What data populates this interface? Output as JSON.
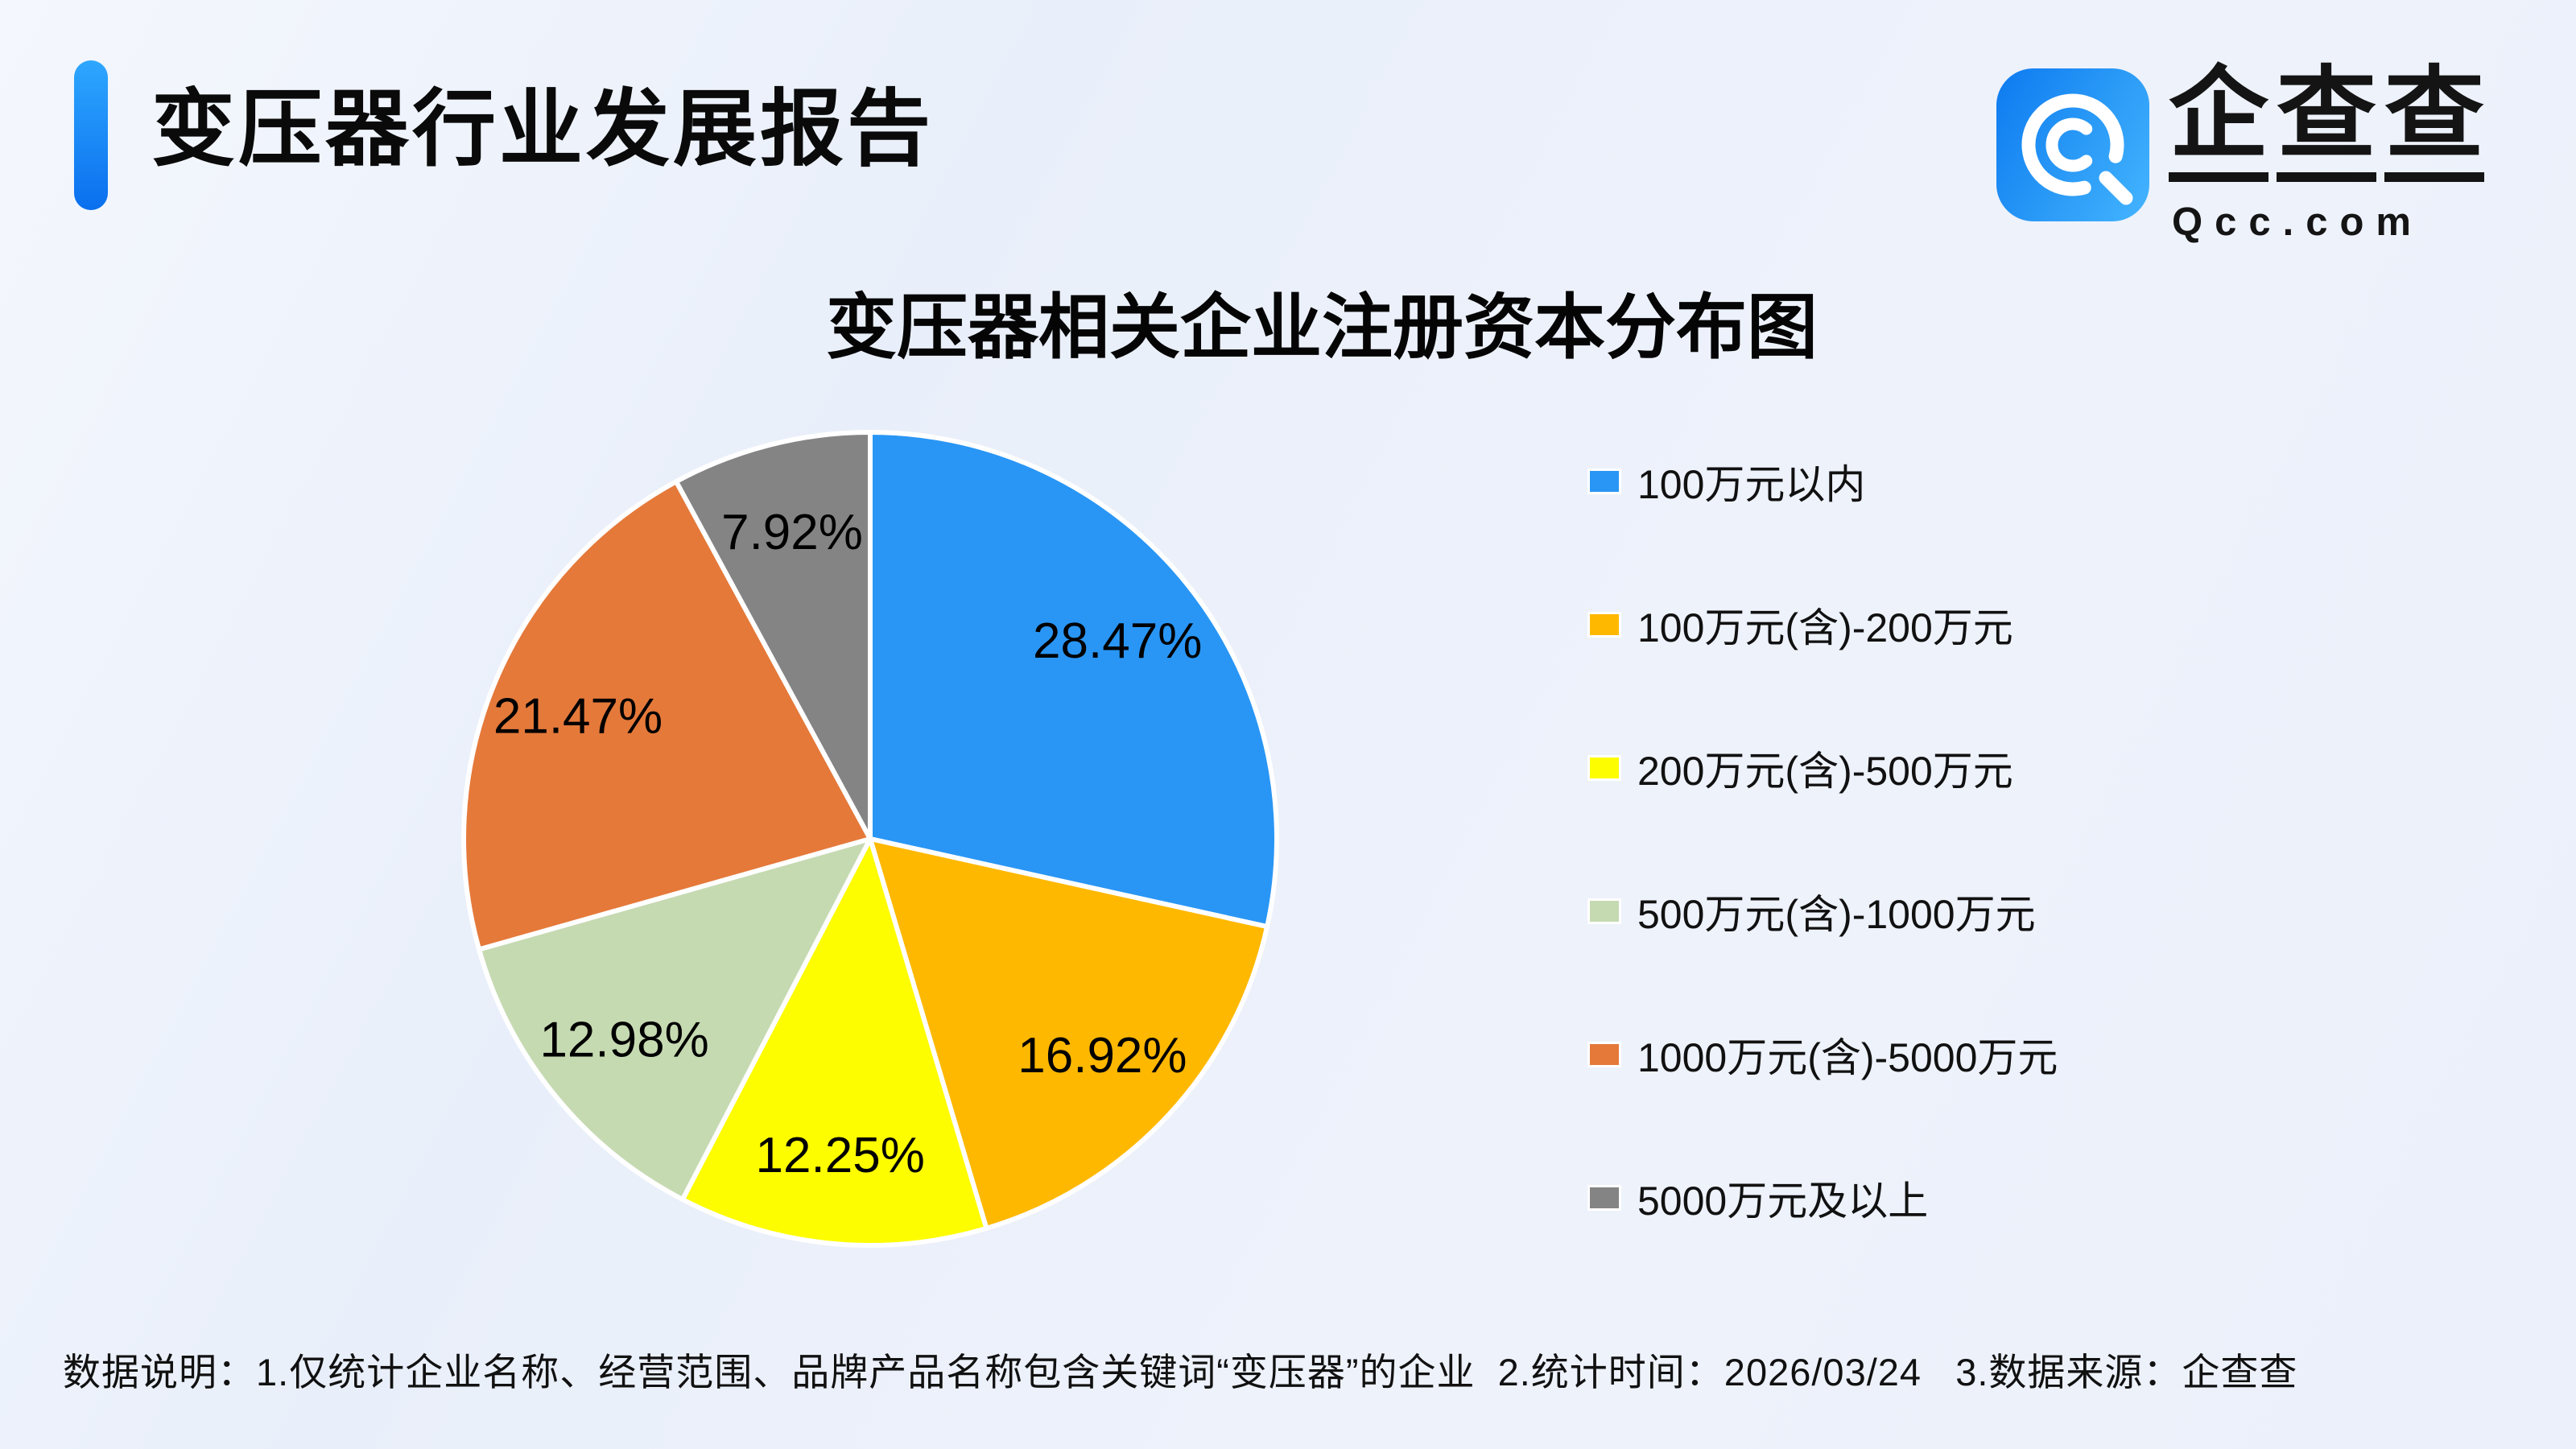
{
  "header": {
    "title": "变压器行业发展报告",
    "accent_color": "#0a6fee"
  },
  "logo": {
    "name": "企查查",
    "domain": "Qcc.com",
    "icon": "qcc-magnifier-spiral-icon",
    "icon_color": "#1e88f7"
  },
  "chart_data": {
    "type": "pie",
    "title": "变压器相关企业注册资本分布图",
    "label_format": "percent",
    "start_angle_deg": 0,
    "direction": "clockwise",
    "legend_position": "right",
    "slices": [
      {
        "label": "100万元以内",
        "value": 28.47,
        "color": "#2996f5"
      },
      {
        "label": "100万元(含)-200万元",
        "value": 16.92,
        "color": "#ffb800"
      },
      {
        "label": "200万元(含)-500万元",
        "value": 12.25,
        "color": "#fdfd00"
      },
      {
        "label": "500万元(含)-1000万元",
        "value": 12.98,
        "color": "#c6dab2"
      },
      {
        "label": "1000万元(含)-5000万元",
        "value": 21.47,
        "color": "#e5793a"
      },
      {
        "label": "5000万元及以上",
        "value": 7.92,
        "color": "#848484"
      }
    ]
  },
  "footer": {
    "note": "数据说明：1.仅统计企业名称、经营范围、品牌产品名称包含关键词“变压器”的企业  2.统计时间：2026/03/24   3.数据来源：企查查"
  }
}
